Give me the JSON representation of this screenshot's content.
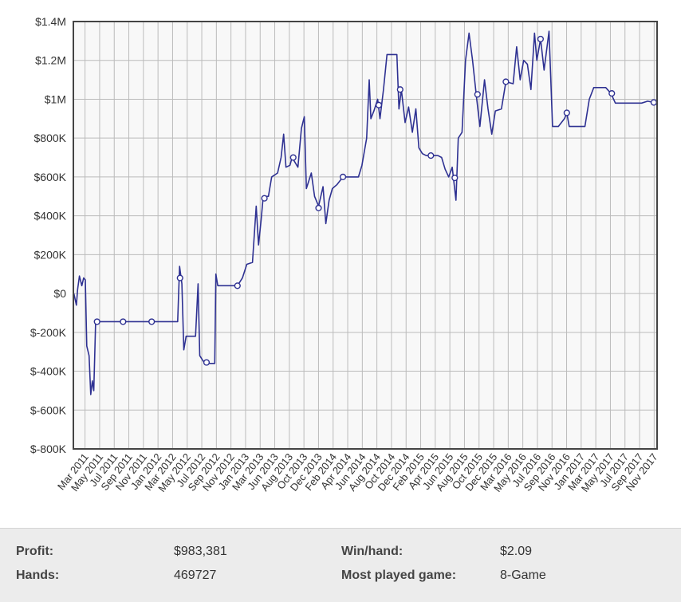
{
  "chart_data": {
    "type": "line",
    "title": "",
    "xlabel": "",
    "ylabel": "",
    "ylim": [
      -800000,
      1400000
    ],
    "y_ticks": [
      "$1.4M",
      "$1.2M",
      "$1M",
      "$800K",
      "$600K",
      "$400K",
      "$200K",
      "$0",
      "$-200K",
      "$-400K",
      "$-600K",
      "$-800K"
    ],
    "y_tick_values": [
      1400000,
      1200000,
      1000000,
      800000,
      600000,
      400000,
      200000,
      0,
      -200000,
      -400000,
      -600000,
      -800000
    ],
    "x_tick_labels": [
      "Mar 2011",
      "May 2011",
      "Jul 2011",
      "Sep 2011",
      "Nov 2011",
      "Jan 2012",
      "Mar 2012",
      "May 2012",
      "Jul 2012",
      "Sep 2012",
      "Nov 2012",
      "Jan 2013",
      "Mar 2013",
      "Jun 2013",
      "Aug 2013",
      "Oct 2013",
      "Dec 2013",
      "Feb 2014",
      "Apr 2014",
      "Jun 2014",
      "Aug 2014",
      "Oct 2014",
      "Dec 2014",
      "Feb 2015",
      "Apr 2015",
      "Jun 2015",
      "Aug 2015",
      "Oct 2015",
      "Dec 2015",
      "Mar 2016",
      "May 2016",
      "Jul 2016",
      "Sep 2016",
      "Nov 2016",
      "Jan 2017",
      "Mar 2017",
      "May 2017",
      "Jul 2017",
      "Sep 2017",
      "Nov 2017"
    ],
    "x_range": [
      "2011-02-20",
      "2017-12-15"
    ],
    "grid": true,
    "colors": {
      "line": "#2e3192",
      "plot_bg": "#f8f8f8",
      "grid": "#bbbbbb",
      "border": "#444444"
    },
    "series": [
      {
        "points": [
          [
            "2011-02-22",
            0
          ],
          [
            "2011-03-05",
            -60000
          ],
          [
            "2011-03-10",
            20000
          ],
          [
            "2011-03-18",
            90000
          ],
          [
            "2011-03-28",
            40000
          ],
          [
            "2011-04-05",
            80000
          ],
          [
            "2011-04-12",
            70000
          ],
          [
            "2011-04-18",
            -270000
          ],
          [
            "2011-04-28",
            -320000
          ],
          [
            "2011-05-05",
            -520000
          ],
          [
            "2011-05-12",
            -450000
          ],
          [
            "2011-05-18",
            -500000
          ],
          [
            "2011-05-26",
            -150000
          ],
          [
            "2011-06-05",
            -145000
          ],
          [
            "2011-09-20",
            -145000
          ],
          [
            "2012-01-20",
            -145000
          ],
          [
            "2012-05-10",
            -145000
          ],
          [
            "2012-05-18",
            140000
          ],
          [
            "2012-05-28",
            50000
          ],
          [
            "2012-06-05",
            -290000
          ],
          [
            "2012-06-15",
            -220000
          ],
          [
            "2012-07-25",
            -220000
          ],
          [
            "2012-08-05",
            50000
          ],
          [
            "2012-08-12",
            -320000
          ],
          [
            "2012-08-25",
            -345000
          ],
          [
            "2012-09-05",
            -360000
          ],
          [
            "2012-10-15",
            -360000
          ],
          [
            "2012-10-20",
            100000
          ],
          [
            "2012-10-28",
            40000
          ],
          [
            "2013-01-20",
            40000
          ],
          [
            "2013-02-10",
            80000
          ],
          [
            "2013-03-01",
            150000
          ],
          [
            "2013-03-25",
            160000
          ],
          [
            "2013-04-10",
            450000
          ],
          [
            "2013-04-20",
            250000
          ],
          [
            "2013-05-01",
            380000
          ],
          [
            "2013-05-10",
            500000
          ],
          [
            "2013-06-01",
            500000
          ],
          [
            "2013-06-15",
            600000
          ],
          [
            "2013-07-10",
            620000
          ],
          [
            "2013-07-25",
            700000
          ],
          [
            "2013-08-05",
            820000
          ],
          [
            "2013-08-15",
            650000
          ],
          [
            "2013-09-01",
            660000
          ],
          [
            "2013-09-10",
            700000
          ],
          [
            "2013-10-05",
            650000
          ],
          [
            "2013-10-20",
            850000
          ],
          [
            "2013-11-01",
            910000
          ],
          [
            "2013-11-10",
            540000
          ],
          [
            "2013-12-01",
            620000
          ],
          [
            "2013-12-15",
            500000
          ],
          [
            "2014-01-01",
            450000
          ],
          [
            "2014-01-20",
            550000
          ],
          [
            "2014-02-01",
            360000
          ],
          [
            "2014-02-15",
            480000
          ],
          [
            "2014-03-01",
            540000
          ],
          [
            "2014-03-20",
            560000
          ],
          [
            "2014-04-15",
            600000
          ],
          [
            "2014-06-20",
            600000
          ],
          [
            "2014-07-05",
            660000
          ],
          [
            "2014-07-25",
            800000
          ],
          [
            "2014-08-05",
            1100000
          ],
          [
            "2014-08-12",
            900000
          ],
          [
            "2014-08-25",
            940000
          ],
          [
            "2014-09-10",
            1000000
          ],
          [
            "2014-09-20",
            900000
          ],
          [
            "2014-10-05",
            1050000
          ],
          [
            "2014-10-20",
            1230000
          ],
          [
            "2014-12-01",
            1230000
          ],
          [
            "2014-12-10",
            950000
          ],
          [
            "2014-12-20",
            1050000
          ],
          [
            "2015-01-05",
            880000
          ],
          [
            "2015-01-20",
            960000
          ],
          [
            "2015-02-05",
            830000
          ],
          [
            "2015-02-20",
            950000
          ],
          [
            "2015-03-05",
            750000
          ],
          [
            "2015-03-20",
            720000
          ],
          [
            "2015-04-05",
            710000
          ],
          [
            "2015-05-25",
            710000
          ],
          [
            "2015-06-10",
            700000
          ],
          [
            "2015-06-25",
            640000
          ],
          [
            "2015-07-10",
            600000
          ],
          [
            "2015-07-25",
            650000
          ],
          [
            "2015-08-10",
            480000
          ],
          [
            "2015-08-20",
            800000
          ],
          [
            "2015-09-05",
            830000
          ],
          [
            "2015-09-20",
            1200000
          ],
          [
            "2015-10-05",
            1340000
          ],
          [
            "2015-10-20",
            1200000
          ],
          [
            "2015-11-05",
            1020000
          ],
          [
            "2015-11-20",
            860000
          ],
          [
            "2015-12-10",
            1100000
          ],
          [
            "2015-12-25",
            950000
          ],
          [
            "2016-01-10",
            820000
          ],
          [
            "2016-01-25",
            940000
          ],
          [
            "2016-02-20",
            950000
          ],
          [
            "2016-03-10",
            1090000
          ],
          [
            "2016-04-10",
            1080000
          ],
          [
            "2016-04-25",
            1270000
          ],
          [
            "2016-05-10",
            1100000
          ],
          [
            "2016-05-25",
            1200000
          ],
          [
            "2016-06-10",
            1180000
          ],
          [
            "2016-06-25",
            1050000
          ],
          [
            "2016-07-10",
            1340000
          ],
          [
            "2016-07-20",
            1200000
          ],
          [
            "2016-08-05",
            1310000
          ],
          [
            "2016-08-20",
            1150000
          ],
          [
            "2016-09-10",
            1350000
          ],
          [
            "2016-09-25",
            860000
          ],
          [
            "2016-10-20",
            860000
          ],
          [
            "2016-11-15",
            900000
          ],
          [
            "2016-11-25",
            930000
          ],
          [
            "2016-12-05",
            860000
          ],
          [
            "2017-02-10",
            860000
          ],
          [
            "2017-03-01",
            1000000
          ],
          [
            "2017-03-20",
            1060000
          ],
          [
            "2017-05-10",
            1060000
          ],
          [
            "2017-06-01",
            1030000
          ],
          [
            "2017-06-20",
            980000
          ],
          [
            "2017-10-10",
            980000
          ],
          [
            "2017-11-05",
            990000
          ],
          [
            "2017-12-01",
            983381
          ]
        ],
        "markers": [
          [
            "2011-06-01",
            -145000
          ],
          [
            "2011-09-20",
            -145000
          ],
          [
            "2012-01-20",
            -145000
          ],
          [
            "2012-05-20",
            80000
          ],
          [
            "2012-09-10",
            -355000
          ],
          [
            "2013-01-20",
            40000
          ],
          [
            "2013-05-15",
            490000
          ],
          [
            "2013-09-15",
            700000
          ],
          [
            "2014-01-01",
            440000
          ],
          [
            "2014-04-15",
            600000
          ],
          [
            "2014-09-15",
            970000
          ],
          [
            "2014-12-15",
            1050000
          ],
          [
            "2015-04-25",
            710000
          ],
          [
            "2015-08-05",
            595000
          ],
          [
            "2015-11-10",
            1025000
          ],
          [
            "2016-03-10",
            1090000
          ],
          [
            "2016-08-05",
            1310000
          ],
          [
            "2016-11-25",
            930000
          ],
          [
            "2017-06-05",
            1030000
          ],
          [
            "2017-12-01",
            983381
          ]
        ]
      }
    ]
  },
  "stats": {
    "profit_label": "Profit:",
    "profit_value": "$983,381",
    "hands_label": "Hands:",
    "hands_value": "469727",
    "winhand_label": "Win/hand:",
    "winhand_value": "$2.09",
    "most_played_label": "Most played game:",
    "most_played_value": "8-Game"
  }
}
